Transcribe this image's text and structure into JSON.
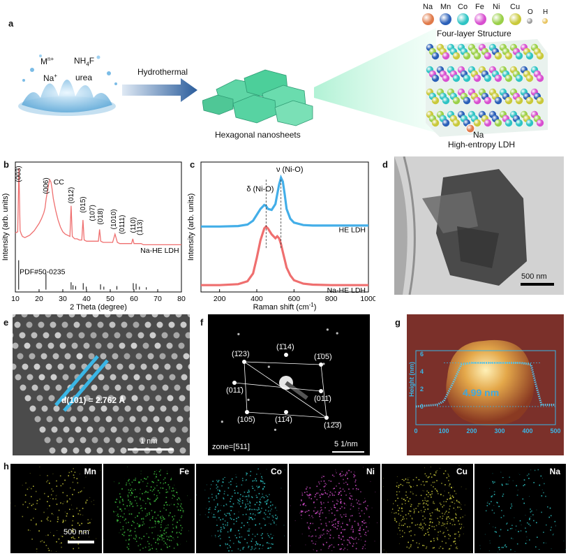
{
  "panel_a": {
    "label": "a",
    "reactants": {
      "metal": "M",
      "metal_sup": "n+",
      "sodium": "Na",
      "sodium_sup": "+",
      "fluoride": "NH",
      "fluoride_sub": "4",
      "fluoride_end": "F",
      "urea": "urea"
    },
    "arrow_label": "Hydrothermal",
    "nanosheets_label": "Hexagonal nanosheets",
    "structure_title": "Four-layer Structure",
    "na_label": "Na",
    "ldh_label": "High-entropy LDH",
    "atom_legend": [
      {
        "symbol": "Na",
        "color": "#e07a4a"
      },
      {
        "symbol": "Mn",
        "color": "#2a5fb8"
      },
      {
        "symbol": "Co",
        "color": "#2ec4c4"
      },
      {
        "symbol": "Fe",
        "color": "#d84fd0"
      },
      {
        "symbol": "Ni",
        "color": "#9ad048"
      },
      {
        "symbol": "Cu",
        "color": "#c9c93a"
      },
      {
        "symbol": "O",
        "color": "#9a9a9a"
      },
      {
        "symbol": "H",
        "color": "#e8c25a"
      }
    ]
  },
  "panel_b": {
    "label": "b",
    "chart_data": {
      "type": "line",
      "xlabel": "2 Theta (degree)",
      "ylabel": "Intensity (arb. units)",
      "xlim": [
        10,
        80
      ],
      "xticks": [
        10,
        20,
        30,
        40,
        50,
        60,
        70,
        80
      ],
      "series": [
        {
          "name": "Na-HE LDH",
          "color": "#ef6f6f",
          "x": [
            10,
            11,
            11.5,
            12,
            12.5,
            13,
            14,
            15,
            16,
            17,
            18,
            19,
            20,
            21,
            22,
            22.5,
            23,
            23.5,
            24,
            24.5,
            25,
            25.5,
            26,
            27,
            28,
            29,
            30,
            31,
            32,
            33,
            33.5,
            34,
            34.5,
            35,
            36,
            37,
            38,
            38.5,
            39,
            40,
            41,
            42,
            43,
            44,
            45,
            45.5,
            46,
            47,
            48,
            49,
            50,
            51,
            52,
            53,
            54,
            55,
            56,
            57,
            58,
            59,
            59.5,
            60,
            61,
            62,
            63,
            64,
            65,
            66,
            68,
            70,
            72,
            74,
            76,
            78,
            80
          ],
          "y": [
            0.45,
            0.46,
            1.0,
            0.47,
            0.44,
            0.42,
            0.41,
            0.42,
            0.43,
            0.45,
            0.47,
            0.5,
            0.53,
            0.57,
            0.62,
            0.66,
            0.74,
            0.8,
            0.86,
            0.9,
            0.88,
            0.82,
            0.74,
            0.64,
            0.56,
            0.5,
            0.46,
            0.44,
            0.43,
            0.42,
            0.68,
            0.42,
            0.41,
            0.4,
            0.4,
            0.39,
            0.39,
            0.56,
            0.39,
            0.38,
            0.38,
            0.38,
            0.38,
            0.38,
            0.38,
            0.48,
            0.38,
            0.37,
            0.37,
            0.37,
            0.37,
            0.37,
            0.44,
            0.37,
            0.36,
            0.36,
            0.36,
            0.36,
            0.36,
            0.36,
            0.4,
            0.36,
            0.36,
            0.36,
            0.36,
            0.35,
            0.35,
            0.35,
            0.35,
            0.35,
            0.35,
            0.35,
            0.35,
            0.35,
            0.35
          ]
        }
      ],
      "reference": {
        "name": "PDF#50-0235",
        "x": [
          11.4,
          22.9,
          33.5,
          34.3,
          35.4,
          38.6,
          39.9,
          45.9,
          47.3,
          52.8,
          59.7,
          60.9,
          62.3,
          65.2
        ],
        "h": [
          1.0,
          0.55,
          0.25,
          0.15,
          0.12,
          0.22,
          0.1,
          0.18,
          0.1,
          0.12,
          0.22,
          0.2,
          0.1,
          0.08
        ]
      },
      "annotations": [
        {
          "text": "(003)",
          "x": 11.4
        },
        {
          "text": "(006)",
          "x": 22.9
        },
        {
          "text": "CC",
          "x": 25.5
        },
        {
          "text": "(012)",
          "x": 33.5
        },
        {
          "text": "(015)",
          "x": 38.6
        },
        {
          "text": "(107)",
          "x": 42.5
        },
        {
          "text": "(018)",
          "x": 45.9
        },
        {
          "text": "(1010)",
          "x": 51.5
        },
        {
          "text": "(0111)",
          "x": 55.0
        },
        {
          "text": "(110)",
          "x": 59.7
        },
        {
          "text": "(113)",
          "x": 62.5
        }
      ]
    }
  },
  "panel_c": {
    "label": "c",
    "chart_data": {
      "type": "line",
      "xlabel": "Raman shift (cm",
      "xlabel_sup": "-1",
      "xlabel_end": ")",
      "ylabel": "Intensity (arb. units)",
      "xlim": [
        100,
        1000
      ],
      "xticks": [
        200,
        400,
        600,
        800,
        1000
      ],
      "series": [
        {
          "name": "HE LDH",
          "color": "#43aee8",
          "x": [
            100,
            200,
            300,
            350,
            380,
            400,
            420,
            440,
            450,
            460,
            480,
            500,
            510,
            520,
            530,
            540,
            550,
            560,
            580,
            600,
            650,
            700,
            800,
            900,
            1000
          ],
          "y": [
            0.62,
            0.62,
            0.625,
            0.64,
            0.68,
            0.74,
            0.8,
            0.84,
            0.83,
            0.8,
            0.79,
            0.85,
            0.95,
            1.05,
            1.12,
            1.08,
            0.95,
            0.8,
            0.7,
            0.66,
            0.635,
            0.63,
            0.63,
            0.63,
            0.63
          ]
        },
        {
          "name": "Na-HE LDH",
          "color": "#ef6f6f",
          "x": [
            100,
            200,
            300,
            350,
            380,
            400,
            420,
            440,
            450,
            460,
            480,
            500,
            510,
            520,
            530,
            540,
            550,
            560,
            580,
            600,
            650,
            700,
            800,
            900,
            1000
          ],
          "y": [
            0.02,
            0.02,
            0.03,
            0.06,
            0.14,
            0.3,
            0.48,
            0.6,
            0.62,
            0.6,
            0.54,
            0.5,
            0.52,
            0.5,
            0.44,
            0.36,
            0.28,
            0.2,
            0.12,
            0.07,
            0.035,
            0.025,
            0.02,
            0.02,
            0.02
          ]
        }
      ],
      "annotations": [
        {
          "text": "δ (Ni-O)",
          "x": 450
        },
        {
          "text": "ν (Ni-O)",
          "x": 530
        }
      ]
    }
  },
  "panel_d": {
    "label": "d",
    "scale_bar": "500 nm"
  },
  "panel_e": {
    "label": "e",
    "spacing": "d(101) = 2.762 Å",
    "scale_bar": "1 nm"
  },
  "panel_f": {
    "label": "f",
    "zone": "zone=[511]",
    "scale_bar": "5 1/nm",
    "spots": [
      "(1̄23)",
      "(1̄14)",
      "(1̄05)",
      "(011̄)",
      "(011̄)",
      "(105̄)",
      "(11̄4̄)",
      "(12̄3̄)"
    ]
  },
  "panel_g": {
    "label": "g",
    "ylabel": "Height (nm)",
    "height": "4.99 nm",
    "xticks": [
      "0",
      "100",
      "200",
      "300",
      "400",
      "500"
    ],
    "yticks": [
      "0",
      "2",
      "4",
      "6"
    ]
  },
  "panel_h": {
    "label": "h",
    "scale_bar": "500 nm",
    "maps": [
      {
        "element": "Mn",
        "color": "#c9c93a",
        "density": 0.35
      },
      {
        "element": "Fe",
        "color": "#3fc43f",
        "density": 0.9
      },
      {
        "element": "Co",
        "color": "#2ec4c4",
        "density": 0.85
      },
      {
        "element": "Ni",
        "color": "#d84fd0",
        "density": 0.85
      },
      {
        "element": "Cu",
        "color": "#c9c93a",
        "density": 0.85
      },
      {
        "element": "Na",
        "color": "#2ec4c4",
        "density": 0.3
      }
    ]
  }
}
